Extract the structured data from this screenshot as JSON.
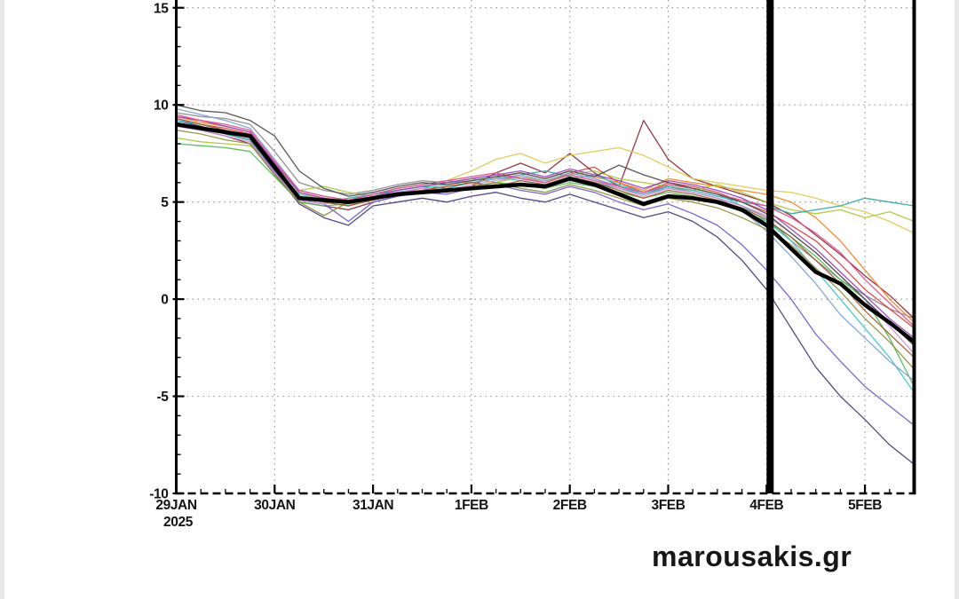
{
  "watermark": {
    "text": "marousakis.gr",
    "color": "#161616"
  },
  "chart_data": {
    "type": "line",
    "title": "",
    "xlabel": "",
    "ylabel": "",
    "description": "Ensemble forecast temperature plume: thin colored member traces, thick black ensemble mean, thick vertical black time marker at 4FEB",
    "xlim": [
      0,
      7.5
    ],
    "ylim": [
      -10,
      15.4
    ],
    "x_step": 0.25,
    "grid": {
      "show": true,
      "style": "dotted",
      "color": "#9a9a9a"
    },
    "axis_color": "#000000",
    "x_ticks": [
      {
        "day": 0,
        "label": "29JAN",
        "sublabel": "2025"
      },
      {
        "day": 1,
        "label": "30JAN",
        "sublabel": ""
      },
      {
        "day": 2,
        "label": "31JAN",
        "sublabel": ""
      },
      {
        "day": 3,
        "label": "1FEB",
        "sublabel": ""
      },
      {
        "day": 4,
        "label": "2FEB",
        "sublabel": ""
      },
      {
        "day": 5,
        "label": "3FEB",
        "sublabel": ""
      },
      {
        "day": 6,
        "label": "4FEB",
        "sublabel": ""
      },
      {
        "day": 7,
        "label": "5FEB",
        "sublabel": ""
      }
    ],
    "y_ticks": [
      15,
      10,
      5,
      0,
      -5,
      -10
    ],
    "y_minor_step": 1,
    "x_minor_step": 0.25,
    "vline": {
      "day": 6,
      "color": "#000000",
      "width": 8
    },
    "mean": {
      "name": "ensemble-mean",
      "color": "#000000",
      "width": 4.5,
      "values": [
        9.0,
        8.8,
        8.6,
        8.4,
        6.8,
        5.2,
        5.1,
        5.0,
        5.2,
        5.4,
        5.5,
        5.6,
        5.7,
        5.8,
        5.9,
        5.8,
        6.2,
        5.9,
        5.4,
        4.9,
        5.3,
        5.2,
        5.0,
        4.6,
        3.8,
        2.6,
        1.4,
        0.8,
        -0.3,
        -1.2,
        -2.2
      ]
    },
    "series": [
      {
        "name": "member-01",
        "color": "#8a8a8a",
        "values": [
          9.6,
          9.4,
          9.3,
          9.0,
          7.6,
          6.0,
          5.6,
          5.4,
          5.6,
          5.9,
          6.1,
          6.0,
          6.2,
          6.4,
          6.2,
          6.0,
          6.5,
          6.2,
          5.8,
          5.5,
          5.8,
          5.5,
          5.2,
          4.8,
          4.2,
          3.0,
          2.0,
          1.0,
          0.2,
          -0.5,
          -1.0
        ]
      },
      {
        "name": "member-02",
        "color": "#433a78",
        "values": [
          9.2,
          8.9,
          8.5,
          8.2,
          6.5,
          4.9,
          4.2,
          3.8,
          4.8,
          5.0,
          5.2,
          5.0,
          5.3,
          5.5,
          5.2,
          5.0,
          5.4,
          5.0,
          4.6,
          4.2,
          4.5,
          4.0,
          3.2,
          2.0,
          0.5,
          -1.5,
          -3.5,
          -5.0,
          -6.2,
          -7.5,
          -8.5
        ]
      },
      {
        "name": "member-03",
        "color": "#d94040",
        "values": [
          9.3,
          9.0,
          8.8,
          8.5,
          6.9,
          5.3,
          5.0,
          4.8,
          5.2,
          5.5,
          5.6,
          5.8,
          6.0,
          6.2,
          6.3,
          6.0,
          6.5,
          6.8,
          6.0,
          5.5,
          6.0,
          5.8,
          5.5,
          5.0,
          4.5,
          3.8,
          3.0,
          1.8,
          0.5,
          -0.5,
          -1.5
        ]
      },
      {
        "name": "member-04",
        "color": "#8b2635",
        "values": [
          9.0,
          8.7,
          8.4,
          8.0,
          6.4,
          5.0,
          4.8,
          4.6,
          5.0,
          5.3,
          5.5,
          5.6,
          5.8,
          6.5,
          7.0,
          6.5,
          7.5,
          6.5,
          5.8,
          9.2,
          7.2,
          6.2,
          5.8,
          5.4,
          5.0,
          4.3,
          3.3,
          2.3,
          1.2,
          0.2,
          -1.0
        ]
      },
      {
        "name": "member-05",
        "color": "#f08422",
        "values": [
          9.4,
          9.1,
          8.9,
          8.6,
          7.0,
          5.5,
          5.2,
          5.0,
          5.3,
          5.6,
          5.8,
          6.0,
          6.1,
          6.3,
          6.5,
          6.2,
          6.6,
          6.3,
          6.0,
          5.6,
          6.2,
          6.0,
          5.8,
          5.6,
          5.4,
          5.0,
          4.2,
          3.0,
          1.5,
          0.0,
          -1.2
        ]
      },
      {
        "name": "member-06",
        "color": "#ddca50",
        "values": [
          9.1,
          8.8,
          8.6,
          8.3,
          6.7,
          5.4,
          5.2,
          5.1,
          5.4,
          5.7,
          5.9,
          6.1,
          6.6,
          7.2,
          7.5,
          7.0,
          7.4,
          7.6,
          7.8,
          7.4,
          6.8,
          6.2,
          6.0,
          5.8,
          5.6,
          5.5,
          5.2,
          4.8,
          4.5,
          4.0,
          3.4
        ]
      },
      {
        "name": "member-07",
        "color": "#a8c83c",
        "values": [
          8.3,
          8.1,
          8.0,
          7.9,
          6.9,
          5.6,
          5.8,
          5.5,
          5.3,
          5.6,
          5.8,
          6.0,
          6.2,
          6.0,
          6.3,
          6.1,
          6.4,
          6.6,
          6.2,
          6.0,
          5.8,
          5.6,
          5.9,
          5.5,
          5.0,
          4.6,
          4.4,
          4.6,
          4.2,
          4.5,
          4.0
        ]
      },
      {
        "name": "member-08",
        "color": "#52b852",
        "values": [
          8.0,
          7.9,
          7.8,
          7.6,
          6.3,
          5.0,
          4.8,
          4.9,
          5.1,
          5.4,
          5.6,
          5.5,
          5.8,
          6.0,
          5.9,
          5.7,
          6.0,
          5.8,
          5.5,
          5.2,
          5.5,
          5.3,
          5.0,
          4.5,
          4.0,
          3.2,
          2.2,
          1.0,
          0.0,
          -2.0,
          -4.5
        ]
      },
      {
        "name": "member-09",
        "color": "#2fa8a0",
        "values": [
          9.0,
          8.8,
          8.5,
          8.2,
          6.6,
          5.2,
          5.0,
          5.2,
          5.4,
          5.6,
          5.8,
          5.7,
          6.0,
          6.2,
          6.4,
          6.6,
          6.3,
          6.0,
          5.7,
          5.4,
          5.8,
          5.6,
          5.3,
          5.0,
          4.8,
          4.4,
          4.6,
          4.8,
          5.2,
          5.0,
          4.8
        ]
      },
      {
        "name": "member-10",
        "color": "#3ec6cc",
        "values": [
          9.2,
          9.0,
          8.7,
          8.4,
          6.8,
          5.4,
          5.1,
          4.9,
          5.2,
          5.5,
          5.7,
          5.9,
          6.1,
          6.3,
          6.1,
          5.9,
          6.2,
          6.4,
          5.9,
          5.5,
          5.9,
          5.7,
          5.4,
          4.8,
          4.0,
          3.0,
          1.5,
          0.0,
          -1.5,
          -3.0,
          -4.8
        ]
      },
      {
        "name": "member-11",
        "color": "#7ea0d4",
        "values": [
          9.8,
          9.5,
          9.2,
          8.8,
          7.2,
          5.6,
          5.3,
          5.1,
          5.4,
          5.7,
          5.9,
          6.1,
          6.0,
          6.2,
          6.4,
          6.1,
          6.5,
          6.2,
          5.8,
          5.4,
          5.7,
          5.5,
          5.2,
          4.6,
          3.5,
          2.2,
          0.8,
          -0.8,
          -2.0,
          -3.2,
          -4.2
        ]
      },
      {
        "name": "member-12",
        "color": "#6a5acd",
        "values": [
          9.1,
          8.8,
          8.6,
          8.3,
          6.6,
          5.1,
          4.9,
          4.0,
          5.0,
          5.3,
          5.5,
          5.4,
          5.7,
          5.9,
          5.6,
          5.4,
          5.8,
          5.5,
          5.0,
          4.6,
          4.9,
          4.4,
          3.8,
          2.8,
          1.5,
          0.0,
          -1.8,
          -3.2,
          -4.5,
          -5.5,
          -6.5
        ]
      },
      {
        "name": "member-13",
        "color": "#9440bb",
        "values": [
          9.4,
          9.2,
          8.9,
          8.6,
          7.0,
          5.5,
          5.2,
          5.0,
          5.3,
          5.6,
          5.8,
          6.0,
          6.2,
          6.4,
          6.6,
          6.3,
          6.7,
          6.4,
          6.1,
          5.7,
          6.1,
          5.9,
          5.6,
          5.2,
          4.6,
          3.6,
          2.6,
          1.4,
          0.2,
          -1.0,
          -2.0
        ]
      },
      {
        "name": "member-14",
        "color": "#c98fd6",
        "values": [
          8.9,
          8.7,
          8.4,
          8.1,
          6.5,
          5.1,
          4.9,
          5.1,
          5.3,
          5.5,
          5.7,
          5.6,
          5.9,
          6.1,
          6.3,
          6.0,
          6.4,
          6.1,
          5.7,
          5.3,
          5.7,
          5.5,
          5.2,
          4.8,
          4.3,
          3.4,
          2.4,
          1.2,
          0.0,
          -1.4,
          -2.8
        ]
      },
      {
        "name": "member-15",
        "color": "#e0508a",
        "values": [
          9.5,
          9.2,
          9.0,
          8.7,
          7.1,
          5.6,
          5.3,
          5.1,
          5.4,
          5.7,
          5.9,
          6.1,
          6.3,
          6.5,
          6.2,
          6.0,
          6.4,
          6.1,
          5.8,
          5.5,
          5.9,
          5.7,
          5.4,
          5.1,
          4.8,
          4.2,
          3.4,
          2.4,
          1.0,
          -0.2,
          -1.4
        ]
      },
      {
        "name": "member-16",
        "color": "#9c5a2e",
        "values": [
          9.3,
          9.0,
          8.7,
          8.4,
          6.8,
          5.3,
          5.0,
          4.8,
          5.1,
          5.4,
          5.6,
          5.8,
          6.0,
          5.8,
          6.1,
          5.9,
          6.3,
          6.0,
          5.6,
          5.2,
          5.6,
          5.4,
          5.1,
          4.7,
          4.1,
          3.2,
          2.0,
          0.8,
          -0.6,
          -1.8,
          -3.0
        ]
      },
      {
        "name": "member-17",
        "color": "#8f8f3d",
        "values": [
          8.7,
          8.5,
          8.2,
          8.0,
          6.4,
          5.0,
          4.3,
          5.0,
          5.2,
          5.4,
          5.6,
          5.5,
          5.8,
          6.0,
          5.7,
          5.5,
          5.9,
          5.6,
          5.2,
          4.8,
          5.2,
          5.0,
          4.7,
          4.2,
          3.6,
          2.8,
          1.6,
          0.4,
          -1.0,
          -2.2,
          -3.6
        ]
      },
      {
        "name": "member-18",
        "color": "#4a4a4a",
        "values": [
          10.0,
          9.7,
          9.6,
          9.2,
          8.4,
          6.6,
          5.7,
          5.3,
          5.5,
          5.8,
          6.0,
          5.9,
          6.1,
          6.3,
          6.5,
          6.2,
          6.6,
          6.3,
          6.9,
          6.4,
          6.0,
          5.7,
          5.4,
          5.0,
          4.4,
          3.4,
          2.4,
          1.2,
          0.0,
          -1.2,
          -2.4
        ]
      }
    ]
  }
}
